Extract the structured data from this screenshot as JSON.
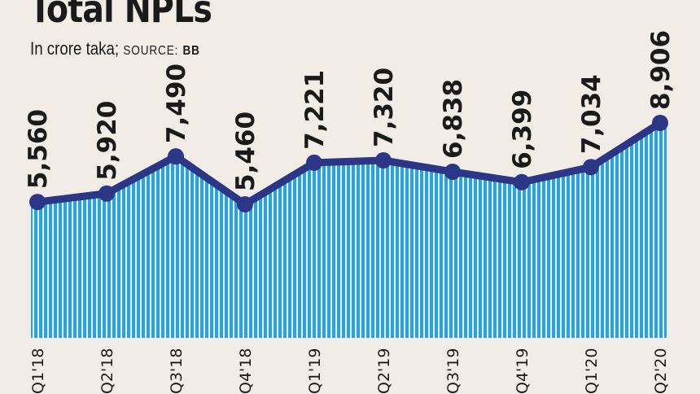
{
  "header": {
    "title": "Total NPLs",
    "subtitle_unit": "In crore taka;",
    "source_label": "SOURCE:",
    "source_value": "BB"
  },
  "colors": {
    "background": "#f1ede6",
    "area_fill": "#2aa2dc",
    "area_stripe": "#ffffff",
    "line": "#2b3786",
    "text": "#1a1a1a"
  },
  "chart_data": {
    "type": "area",
    "title": "Total NPLs",
    "subtitle": "In crore taka; SOURCE: BB",
    "categories": [
      "Q1'18",
      "Q2'18",
      "Q3'18",
      "Q4'18",
      "Q1'19",
      "Q2'19",
      "Q3'19",
      "Q4'19",
      "Q1'20",
      "Q2'20"
    ],
    "data_labels": [
      "5,560",
      "5,920",
      "7,490",
      "5,460",
      "7,221",
      "7,320",
      "6,838",
      "6,399",
      "7,034",
      "8,906"
    ],
    "values": [
      5560,
      5920,
      7490,
      5460,
      7221,
      7320,
      6838,
      6399,
      7034,
      8906
    ],
    "xlabel": "",
    "ylabel": "",
    "grid": false,
    "legend": "none"
  }
}
